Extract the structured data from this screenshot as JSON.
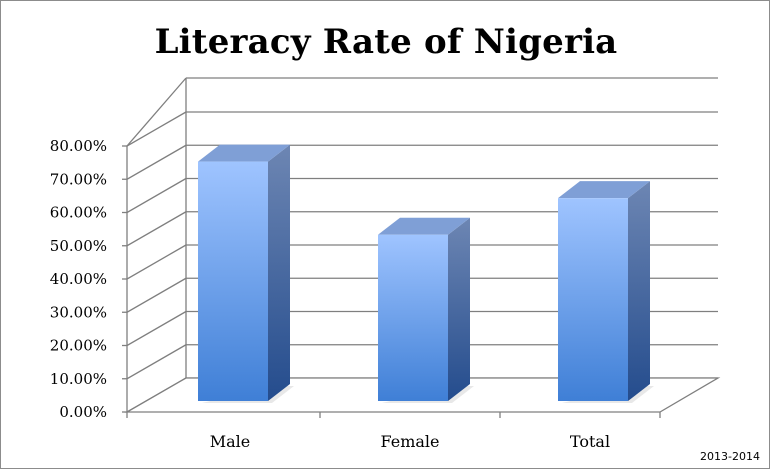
{
  "chart_data": {
    "type": "bar",
    "title": "Literacy Rate of Nigeria",
    "categories": [
      "Male",
      "Female",
      "Total"
    ],
    "series": [
      {
        "values": [
          0.72,
          0.5,
          0.61
        ]
      }
    ],
    "ylim": [
      0,
      0.8
    ],
    "yticks": [
      0,
      0.1,
      0.2,
      0.3,
      0.4,
      0.5,
      0.6,
      0.7,
      0.8
    ],
    "ytick_labels": [
      "0.00%",
      "10.00%",
      "20.00%",
      "30.00%",
      "40.00%",
      "50.00%",
      "60.00%",
      "70.00%",
      "80.00%"
    ],
    "grid": true,
    "style": "3d-column",
    "colors": {
      "bar_top": "#9fc4ff",
      "bar_bottom": "#3f7fd6",
      "bar_side": "#2d5494",
      "bar_cap": "#7f9fd6",
      "grid": "#7f7f7f"
    },
    "note": "2013-2014"
  }
}
